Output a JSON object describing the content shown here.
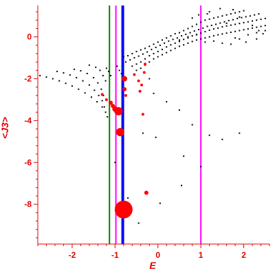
{
  "chart_data": {
    "type": "scatter",
    "xlabel": "E",
    "ylabel": "<J3>",
    "xlim": [
      -2.8,
      2.6
    ],
    "ylim": [
      -9.9,
      1.5
    ],
    "x_ticks": [
      -2,
      -1,
      0,
      1,
      2
    ],
    "y_ticks": [
      0,
      -2,
      -4,
      -6,
      -8
    ],
    "x_tick_labels": [
      "-2",
      "-1",
      "0",
      "1",
      "2"
    ],
    "y_tick_labels": [
      "0",
      "-2",
      "-4",
      "-6",
      "-8"
    ],
    "grid": false,
    "colors": {
      "axis": "#e00000",
      "small_points": "#000000",
      "large_points": "#ff0000",
      "line_green": "#008000",
      "line_magenta": "#ff00ff",
      "line_blue": "#0000ff"
    },
    "vertical_lines": [
      {
        "x": -1.13,
        "color": "#008000",
        "width": 2
      },
      {
        "x": -0.98,
        "color": "#ff00ff",
        "width": 2
      },
      {
        "x": -0.82,
        "color": "#0000ff",
        "width": 4
      },
      {
        "x": 1.0,
        "color": "#ff00ff",
        "width": 2
      }
    ],
    "series": [
      {
        "style": "small-black",
        "points": [
          [
            -2.75,
            -1.85
          ],
          [
            -2.6,
            -1.92
          ],
          [
            -2.45,
            -2.0
          ],
          [
            -2.3,
            -2.1
          ],
          [
            -2.15,
            -2.22
          ],
          [
            -2.0,
            -2.35
          ],
          [
            -1.85,
            -2.5
          ],
          [
            -1.7,
            -2.68
          ],
          [
            -1.55,
            -2.88
          ],
          [
            -1.42,
            -3.1
          ],
          [
            -1.3,
            -3.35
          ],
          [
            -1.22,
            -3.6
          ],
          [
            -1.18,
            -3.82
          ],
          [
            -2.35,
            -1.65
          ],
          [
            -2.2,
            -1.72
          ],
          [
            -2.05,
            -1.82
          ],
          [
            -1.9,
            -1.95
          ],
          [
            -1.75,
            -2.1
          ],
          [
            -1.6,
            -2.3
          ],
          [
            -1.48,
            -2.55
          ],
          [
            -1.38,
            -2.8
          ],
          [
            -1.3,
            -3.05
          ],
          [
            -1.25,
            -3.35
          ],
          [
            -1.95,
            -1.55
          ],
          [
            -1.8,
            -1.62
          ],
          [
            -1.65,
            -1.75
          ],
          [
            -1.5,
            -1.95
          ],
          [
            -1.4,
            -2.2
          ],
          [
            -1.32,
            -2.5
          ],
          [
            -1.27,
            -2.8
          ],
          [
            -1.6,
            -1.35
          ],
          [
            -1.45,
            -1.45
          ],
          [
            -1.35,
            -1.6
          ],
          [
            -1.28,
            -1.85
          ],
          [
            -1.22,
            -2.1
          ],
          [
            -1.2,
            -1.5
          ],
          [
            -1.15,
            -1.65
          ],
          [
            -1.1,
            -1.85
          ],
          [
            -0.95,
            -1.4
          ],
          [
            -0.9,
            -1.6
          ],
          [
            -0.85,
            -1.75
          ],
          [
            -0.8,
            -0.95
          ],
          [
            -0.7,
            -0.9
          ],
          [
            -0.6,
            -0.8
          ],
          [
            -0.5,
            -0.7
          ],
          [
            -0.4,
            -0.62
          ],
          [
            -0.3,
            -0.55
          ],
          [
            -0.2,
            -0.45
          ],
          [
            -0.1,
            -0.35
          ],
          [
            0.0,
            -0.25
          ],
          [
            0.1,
            -0.15
          ],
          [
            0.2,
            -0.05
          ],
          [
            0.3,
            0.05
          ],
          [
            0.4,
            0.15
          ],
          [
            0.5,
            0.2
          ],
          [
            0.6,
            0.3
          ],
          [
            0.7,
            0.4
          ],
          [
            0.8,
            0.5
          ],
          [
            0.9,
            0.6
          ],
          [
            1.0,
            0.7
          ],
          [
            1.1,
            0.8
          ],
          [
            1.2,
            0.85
          ],
          [
            1.3,
            0.9
          ],
          [
            1.4,
            0.95
          ],
          [
            1.5,
            1.0
          ],
          [
            1.6,
            1.05
          ],
          [
            1.7,
            1.1
          ],
          [
            1.8,
            1.15
          ],
          [
            1.9,
            1.2
          ],
          [
            2.0,
            1.25
          ],
          [
            -0.75,
            -1.2
          ],
          [
            -0.65,
            -1.1
          ],
          [
            -0.55,
            -1.0
          ],
          [
            -0.45,
            -0.92
          ],
          [
            -0.35,
            -0.82
          ],
          [
            -0.25,
            -0.72
          ],
          [
            -0.15,
            -0.6
          ],
          [
            -0.05,
            -0.5
          ],
          [
            0.05,
            -0.4
          ],
          [
            0.15,
            -0.3
          ],
          [
            0.25,
            -0.2
          ],
          [
            0.35,
            -0.12
          ],
          [
            0.45,
            -0.05
          ],
          [
            0.55,
            0.05
          ],
          [
            0.65,
            0.12
          ],
          [
            0.75,
            0.2
          ],
          [
            0.85,
            0.28
          ],
          [
            0.95,
            0.35
          ],
          [
            1.05,
            0.42
          ],
          [
            1.15,
            0.5
          ],
          [
            1.25,
            0.55
          ],
          [
            1.35,
            0.6
          ],
          [
            1.45,
            0.66
          ],
          [
            1.55,
            0.72
          ],
          [
            1.65,
            0.78
          ],
          [
            1.75,
            0.82
          ],
          [
            1.85,
            0.88
          ],
          [
            1.95,
            0.92
          ],
          [
            2.05,
            0.96
          ],
          [
            2.15,
            1.0
          ],
          [
            2.25,
            1.05
          ],
          [
            2.35,
            1.1
          ],
          [
            -0.6,
            -1.4
          ],
          [
            -0.5,
            -1.3
          ],
          [
            -0.4,
            -1.2
          ],
          [
            -0.3,
            -1.05
          ],
          [
            -0.2,
            -0.9
          ],
          [
            -0.1,
            -0.8
          ],
          [
            0.0,
            -0.7
          ],
          [
            0.1,
            -0.6
          ],
          [
            0.2,
            -0.48
          ],
          [
            0.3,
            -0.38
          ],
          [
            0.4,
            -0.3
          ],
          [
            0.5,
            -0.22
          ],
          [
            0.6,
            -0.12
          ],
          [
            0.7,
            -0.05
          ],
          [
            0.8,
            0.05
          ],
          [
            0.9,
            0.12
          ],
          [
            1.0,
            0.18
          ],
          [
            1.1,
            0.25
          ],
          [
            1.2,
            0.32
          ],
          [
            1.3,
            0.38
          ],
          [
            1.4,
            0.42
          ],
          [
            1.5,
            0.48
          ],
          [
            1.6,
            0.52
          ],
          [
            1.7,
            0.56
          ],
          [
            1.8,
            0.6
          ],
          [
            1.9,
            0.64
          ],
          [
            2.0,
            0.68
          ],
          [
            2.1,
            0.72
          ],
          [
            2.2,
            0.76
          ],
          [
            2.3,
            0.8
          ],
          [
            2.4,
            0.84
          ],
          [
            2.5,
            0.88
          ],
          [
            -0.5,
            -1.6
          ],
          [
            -0.4,
            -1.5
          ],
          [
            -0.3,
            -1.35
          ],
          [
            -0.2,
            -1.2
          ],
          [
            -0.1,
            -1.05
          ],
          [
            0.0,
            -0.95
          ],
          [
            0.1,
            -0.85
          ],
          [
            0.2,
            -0.75
          ],
          [
            0.3,
            -0.65
          ],
          [
            0.4,
            -0.55
          ],
          [
            0.5,
            -0.45
          ],
          [
            0.6,
            -0.38
          ],
          [
            0.7,
            -0.3
          ],
          [
            0.8,
            -0.22
          ],
          [
            0.9,
            -0.15
          ],
          [
            1.0,
            -0.1
          ],
          [
            1.1,
            -0.05
          ],
          [
            1.2,
            0.0
          ],
          [
            1.3,
            0.05
          ],
          [
            1.4,
            0.1
          ],
          [
            1.5,
            0.14
          ],
          [
            1.6,
            0.18
          ],
          [
            1.7,
            0.22
          ],
          [
            1.8,
            0.26
          ],
          [
            1.9,
            0.3
          ],
          [
            2.0,
            0.34
          ],
          [
            2.1,
            0.38
          ],
          [
            2.2,
            0.42
          ],
          [
            2.3,
            0.46
          ],
          [
            2.4,
            0.5
          ],
          [
            2.5,
            0.54
          ],
          [
            0.5,
            -0.15
          ],
          [
            0.7,
            0.0
          ],
          [
            0.9,
            0.1
          ],
          [
            1.1,
            -0.25
          ],
          [
            1.3,
            -0.2
          ],
          [
            1.5,
            -0.3
          ],
          [
            1.7,
            -0.35
          ],
          [
            1.9,
            -0.1
          ],
          [
            2.1,
            0.1
          ],
          [
            2.3,
            0.2
          ],
          [
            2.5,
            0.3
          ],
          [
            1.6,
            0.65
          ],
          [
            1.9,
            0.95
          ],
          [
            2.2,
            0.55
          ],
          [
            2.45,
            0.15
          ],
          [
            1.2,
            1.2
          ],
          [
            1.45,
            1.35
          ],
          [
            2.35,
            0.3
          ],
          [
            2.05,
            -0.25
          ],
          [
            1.75,
            1.3
          ],
          [
            0.8,
            0.9
          ],
          [
            0.95,
            1.05
          ],
          [
            1.15,
            1.1
          ],
          [
            1.8,
            -0.05
          ],
          [
            2.3,
            -0.1
          ],
          [
            -0.2,
            -2.0
          ],
          [
            -0.1,
            -2.7
          ],
          [
            0.2,
            -3.1
          ],
          [
            0.5,
            -3.5
          ],
          [
            0.8,
            -4.2
          ],
          [
            1.2,
            -4.7
          ],
          [
            1.5,
            -4.9
          ],
          [
            1.9,
            -4.6
          ],
          [
            -0.05,
            -4.8
          ],
          [
            -0.35,
            -4.6
          ],
          [
            0.6,
            -5.7
          ],
          [
            1.0,
            -6.2
          ],
          [
            -1.0,
            -6.0
          ],
          [
            0.55,
            -7.1
          ],
          [
            0.05,
            -7.95
          ],
          [
            -0.45,
            -8.9
          ],
          [
            -0.7,
            -7.7
          ]
        ]
      },
      {
        "style": "red",
        "points": [
          [
            -1.3,
            -2.75,
            2
          ],
          [
            -1.2,
            -3.0,
            2
          ],
          [
            -1.1,
            -3.15,
            3
          ],
          [
            -1.05,
            -3.3,
            3
          ],
          [
            -1.0,
            -3.45,
            4
          ],
          [
            -0.92,
            -3.55,
            6
          ],
          [
            -0.88,
            -4.55,
            6
          ],
          [
            -0.78,
            -2.0,
            4
          ],
          [
            -0.78,
            -2.5,
            3
          ],
          [
            -0.75,
            -2.8,
            2
          ],
          [
            -0.55,
            -1.8,
            2
          ],
          [
            -0.45,
            -2.1,
            2
          ],
          [
            -0.38,
            -2.3,
            2
          ],
          [
            -0.42,
            -2.6,
            2
          ],
          [
            -0.3,
            -1.3,
            2
          ],
          [
            -0.32,
            -1.7,
            2
          ],
          [
            -0.35,
            -3.7,
            2
          ],
          [
            -0.27,
            -7.45,
            3
          ],
          [
            -0.8,
            -8.25,
            13
          ]
        ]
      }
    ]
  }
}
